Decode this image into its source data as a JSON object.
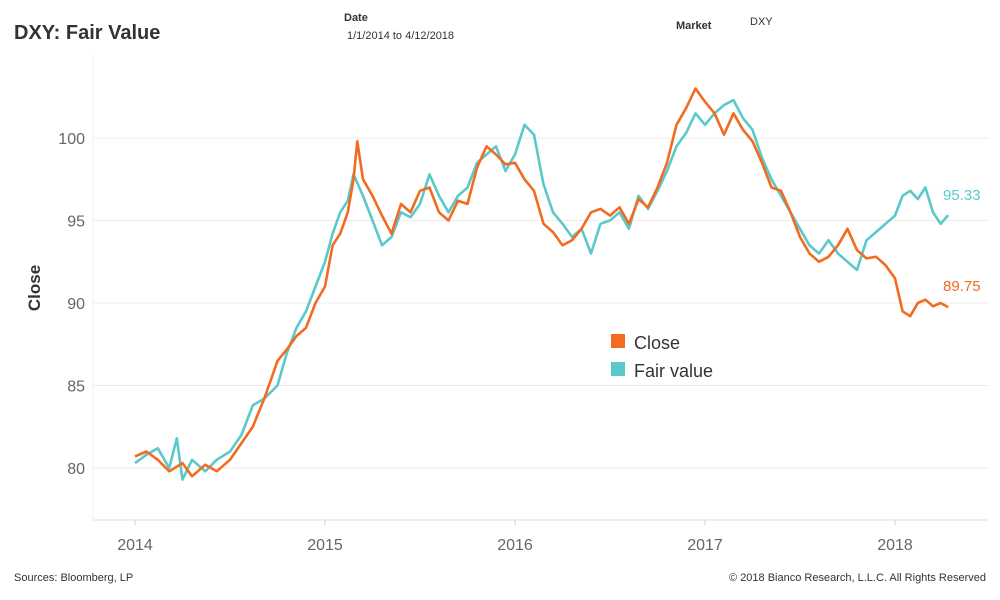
{
  "header": {
    "title": "DXY: Fair Value",
    "date_label": "Date",
    "date_value": "1/1/2014 to 4/12/2018",
    "market_label": "Market",
    "market_value": "DXY"
  },
  "footer": {
    "sources": "Sources: Bloomberg, LP",
    "copyright": "© 2018 Bianco Research, L.L.C. All Rights Reserved"
  },
  "colors": {
    "close": "#f26b21",
    "fair_value": "#5bc9c9",
    "grid": "#ececec",
    "axis": "#dddddd"
  },
  "chart_data": {
    "type": "line",
    "title": "DXY: Fair Value",
    "xlabel": "",
    "ylabel": "Close",
    "xlim": [
      2014.0,
      2018.35
    ],
    "ylim": [
      77.0,
      105.0
    ],
    "x_ticks": [
      2014,
      2015,
      2016,
      2017,
      2018
    ],
    "x_tick_labels": [
      "2014",
      "2015",
      "2016",
      "2017",
      "2018"
    ],
    "y_ticks": [
      80,
      85,
      90,
      95,
      100
    ],
    "y_tick_labels": [
      "80",
      "85",
      "90",
      "95",
      "100"
    ],
    "grid": "horizontal",
    "legend": {
      "placement": "center-right",
      "entries": [
        "Close",
        "Fair value"
      ]
    },
    "end_labels": {
      "close": "89.75",
      "fair_value": "95.33"
    },
    "series": [
      {
        "name": "Close",
        "color": "#f26b21",
        "x": [
          2014.0,
          2014.06,
          2014.12,
          2014.18,
          2014.25,
          2014.3,
          2014.37,
          2014.43,
          2014.5,
          2014.56,
          2014.62,
          2014.68,
          2014.72,
          2014.75,
          2014.8,
          2014.85,
          2014.9,
          2014.95,
          2015.0,
          2015.04,
          2015.08,
          2015.12,
          2015.15,
          2015.17,
          2015.2,
          2015.25,
          2015.3,
          2015.35,
          2015.4,
          2015.45,
          2015.5,
          2015.55,
          2015.6,
          2015.65,
          2015.7,
          2015.75,
          2015.8,
          2015.85,
          2015.9,
          2015.95,
          2016.0,
          2016.05,
          2016.1,
          2016.15,
          2016.2,
          2016.25,
          2016.3,
          2016.35,
          2016.4,
          2016.45,
          2016.5,
          2016.55,
          2016.6,
          2016.65,
          2016.7,
          2016.75,
          2016.8,
          2016.85,
          2016.9,
          2016.95,
          2017.0,
          2017.05,
          2017.1,
          2017.15,
          2017.2,
          2017.25,
          2017.3,
          2017.35,
          2017.4,
          2017.45,
          2017.5,
          2017.55,
          2017.6,
          2017.65,
          2017.7,
          2017.75,
          2017.8,
          2017.85,
          2017.9,
          2017.95,
          2018.0,
          2018.04,
          2018.08,
          2018.12,
          2018.16,
          2018.2,
          2018.24,
          2018.28
        ],
        "y": [
          80.7,
          81.0,
          80.5,
          79.8,
          80.3,
          79.5,
          80.2,
          79.8,
          80.5,
          81.5,
          82.5,
          84.2,
          85.5,
          86.5,
          87.2,
          88.0,
          88.5,
          90.0,
          91.0,
          93.5,
          94.2,
          95.5,
          97.5,
          99.8,
          97.5,
          96.5,
          95.3,
          94.2,
          96.0,
          95.5,
          96.8,
          97.0,
          95.5,
          95.0,
          96.2,
          96.0,
          98.2,
          99.5,
          99.0,
          98.4,
          98.5,
          97.5,
          96.8,
          94.8,
          94.3,
          93.5,
          93.8,
          94.5,
          95.5,
          95.7,
          95.3,
          95.8,
          94.8,
          96.3,
          95.8,
          97.0,
          98.5,
          100.8,
          101.8,
          103.0,
          102.2,
          101.5,
          100.2,
          101.5,
          100.5,
          99.8,
          98.5,
          97.0,
          96.8,
          95.5,
          94.0,
          93.0,
          92.5,
          92.8,
          93.5,
          94.5,
          93.2,
          92.7,
          92.8,
          92.3,
          91.5,
          89.5,
          89.2,
          90.0,
          90.2,
          89.8,
          90.0,
          89.75
        ]
      },
      {
        "name": "Fair value",
        "color": "#5bc9c9",
        "x": [
          2014.0,
          2014.06,
          2014.12,
          2014.18,
          2014.22,
          2014.25,
          2014.3,
          2014.37,
          2014.43,
          2014.5,
          2014.56,
          2014.62,
          2014.68,
          2014.75,
          2014.8,
          2014.85,
          2014.9,
          2014.95,
          2015.0,
          2015.04,
          2015.08,
          2015.12,
          2015.15,
          2015.2,
          2015.25,
          2015.3,
          2015.35,
          2015.4,
          2015.45,
          2015.5,
          2015.55,
          2015.6,
          2015.65,
          2015.7,
          2015.75,
          2015.8,
          2015.85,
          2015.9,
          2015.95,
          2016.0,
          2016.05,
          2016.1,
          2016.15,
          2016.2,
          2016.25,
          2016.3,
          2016.35,
          2016.4,
          2016.45,
          2016.5,
          2016.55,
          2016.6,
          2016.65,
          2016.7,
          2016.75,
          2016.8,
          2016.85,
          2016.9,
          2016.95,
          2017.0,
          2017.05,
          2017.1,
          2017.15,
          2017.2,
          2017.25,
          2017.3,
          2017.35,
          2017.4,
          2017.45,
          2017.5,
          2017.55,
          2017.6,
          2017.65,
          2017.7,
          2017.75,
          2017.8,
          2017.85,
          2017.9,
          2017.95,
          2018.0,
          2018.04,
          2018.08,
          2018.12,
          2018.16,
          2018.2,
          2018.24,
          2018.28
        ],
        "y": [
          80.3,
          80.8,
          81.2,
          80.0,
          81.8,
          79.3,
          80.5,
          79.8,
          80.5,
          81.0,
          82.0,
          83.8,
          84.2,
          85.0,
          87.0,
          88.5,
          89.5,
          91.0,
          92.5,
          94.2,
          95.5,
          96.2,
          97.8,
          96.5,
          95.0,
          93.5,
          94.0,
          95.5,
          95.2,
          96.0,
          97.8,
          96.5,
          95.5,
          96.5,
          97.0,
          98.5,
          99.0,
          99.5,
          98.0,
          99.0,
          100.8,
          100.2,
          97.2,
          95.5,
          94.8,
          94.0,
          94.5,
          93.0,
          94.8,
          95.0,
          95.5,
          94.5,
          96.5,
          95.7,
          96.8,
          98.0,
          99.5,
          100.3,
          101.5,
          100.8,
          101.5,
          102.0,
          102.3,
          101.2,
          100.5,
          98.8,
          97.5,
          96.5,
          95.5,
          94.5,
          93.5,
          93.0,
          93.8,
          93.0,
          92.5,
          92.0,
          93.8,
          94.3,
          94.8,
          95.3,
          96.5,
          96.8,
          96.3,
          97.0,
          95.5,
          94.8,
          95.33
        ]
      }
    ]
  }
}
